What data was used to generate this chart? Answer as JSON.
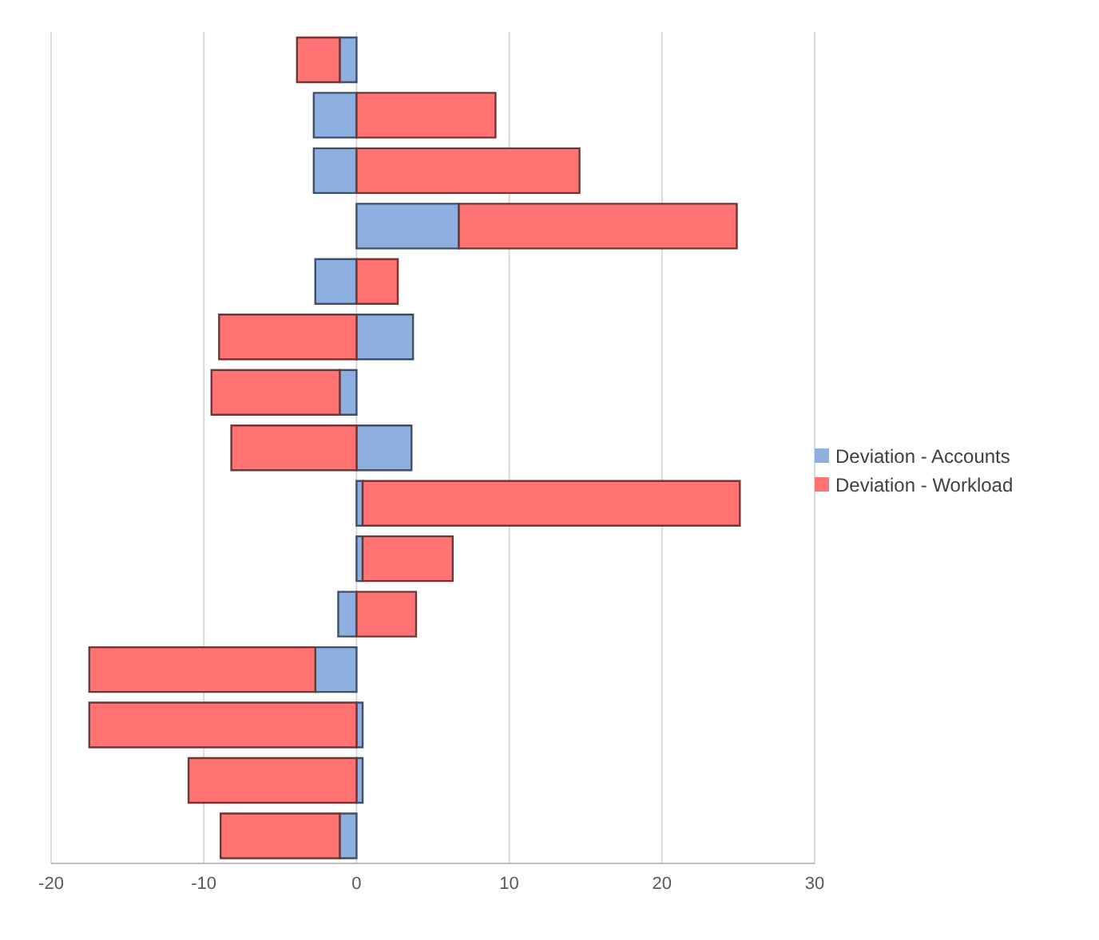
{
  "chart_data": {
    "type": "bar",
    "orientation": "horizontal",
    "stacked": true,
    "categories": [
      null,
      null,
      null,
      null,
      null,
      null,
      null,
      null,
      null,
      null,
      null,
      null,
      null,
      null,
      null
    ],
    "series": [
      {
        "name": "Deviation  - Accounts",
        "color": "#8eb0e0",
        "values": [
          -1.1,
          -2.8,
          -2.8,
          6.7,
          -2.7,
          3.7,
          -1.1,
          3.6,
          0.4,
          0.4,
          -1.2,
          -2.7,
          0.4,
          0.4,
          -1.1
        ]
      },
      {
        "name": "Deviation  - Workload",
        "color": "#ff7373",
        "values": [
          -2.8,
          9.1,
          14.6,
          18.2,
          2.7,
          -9.0,
          -8.4,
          -8.2,
          24.7,
          5.9,
          3.9,
          -14.8,
          -17.5,
          -11.0,
          -7.8
        ]
      }
    ],
    "xlim": [
      -20,
      30
    ],
    "xticks": [
      -20,
      -10,
      0,
      10,
      20,
      30
    ],
    "grid": "x",
    "legend": "right"
  }
}
